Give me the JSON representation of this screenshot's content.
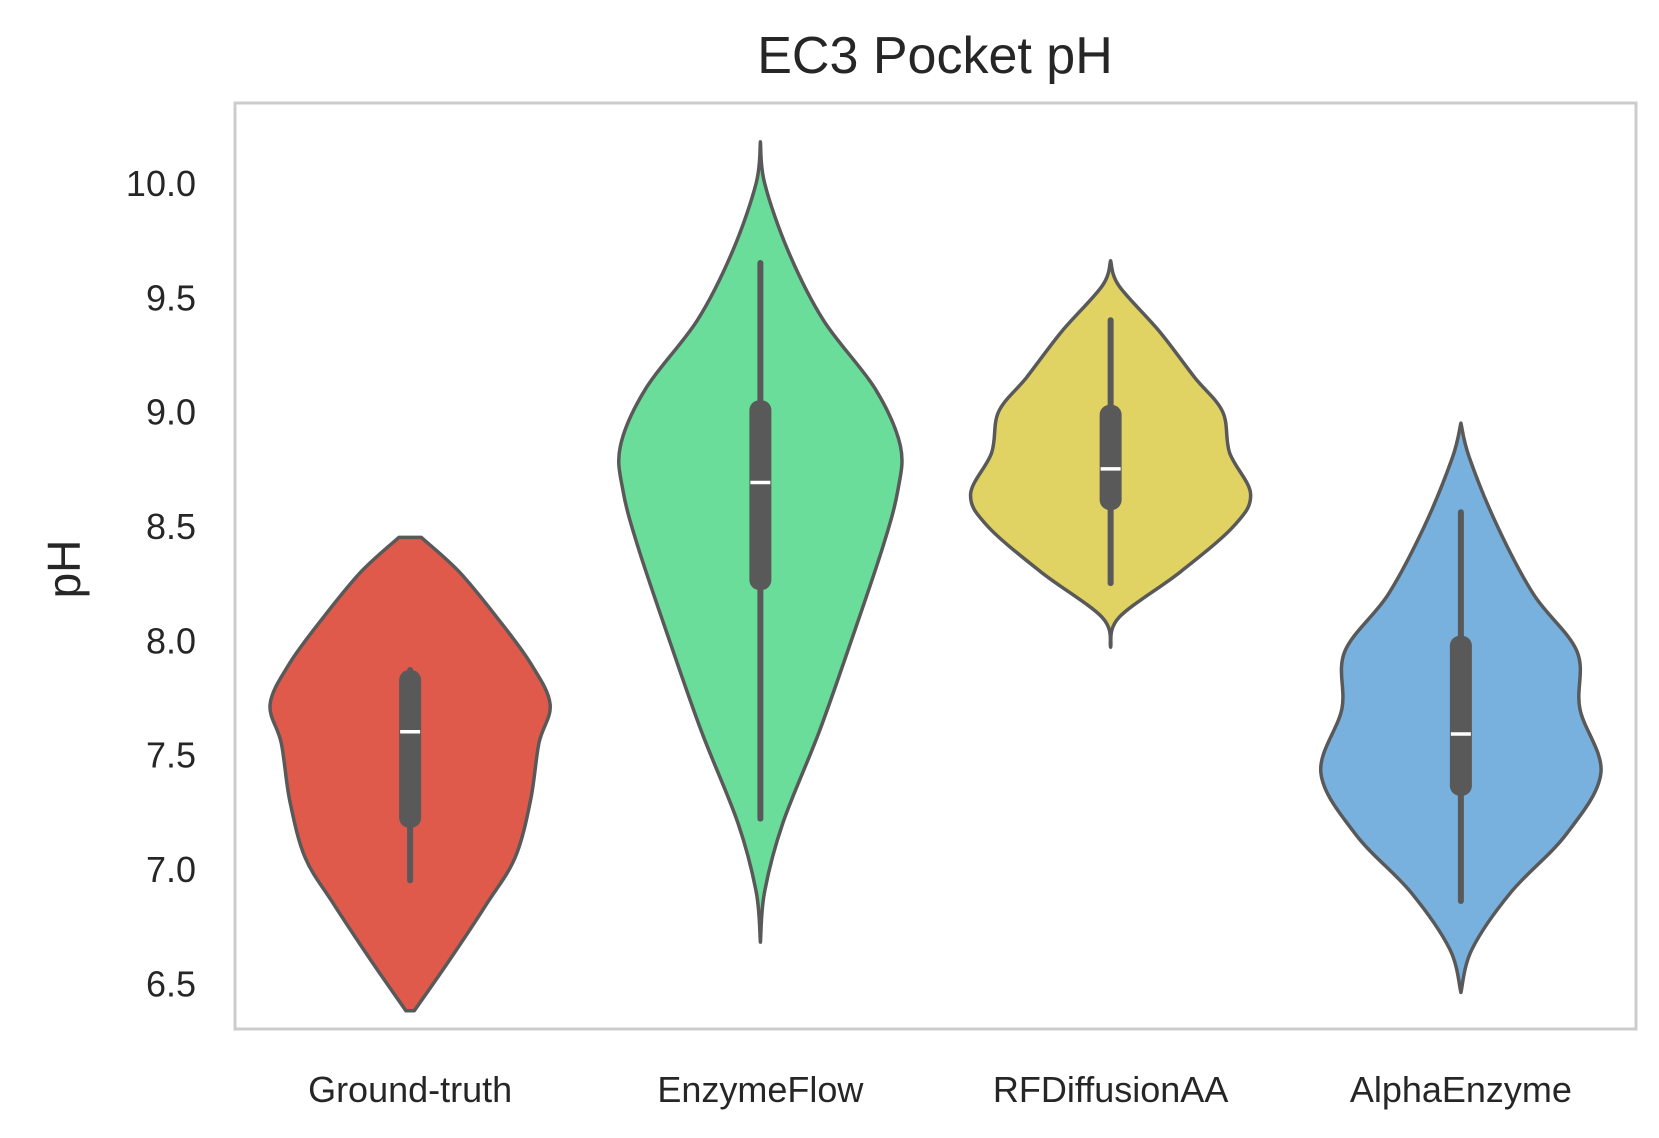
{
  "chart_data": {
    "type": "violin",
    "title": "EC3 Pocket pH",
    "xlabel": "",
    "ylabel": "pH",
    "ylim": [
      6.3,
      10.35
    ],
    "yticks": [
      "6.5",
      "7.0",
      "7.5",
      "8.0",
      "8.5",
      "9.0",
      "9.5",
      "10.0"
    ],
    "grid": false,
    "legend": "none",
    "categories": [
      "Ground-truth",
      "EnzymeFlow",
      "RFDiffusionAA",
      "AlphaEnzyme"
    ],
    "series": [
      {
        "category": "Ground-truth",
        "color": "#e05a4b",
        "min": 6.38,
        "max": 8.45,
        "whisker_low": 6.95,
        "whisker_high": 7.87,
        "q1": 7.18,
        "median": 7.6,
        "q3": 7.87,
        "density": [
          [
            6.38,
            0.03
          ],
          [
            6.6,
            0.28
          ],
          [
            6.85,
            0.55
          ],
          [
            7.05,
            0.75
          ],
          [
            7.3,
            0.86
          ],
          [
            7.55,
            0.92
          ],
          [
            7.72,
            1.0
          ],
          [
            7.9,
            0.86
          ],
          [
            8.1,
            0.62
          ],
          [
            8.3,
            0.35
          ],
          [
            8.45,
            0.08
          ]
        ]
      },
      {
        "category": "EnzymeFlow",
        "color": "#6bdd9a",
        "min": 6.68,
        "max": 10.18,
        "whisker_low": 7.22,
        "whisker_high": 9.65,
        "q1": 8.22,
        "median": 8.69,
        "q3": 9.05,
        "density": [
          [
            6.68,
            0.0
          ],
          [
            6.9,
            0.03
          ],
          [
            7.2,
            0.16
          ],
          [
            7.6,
            0.42
          ],
          [
            8.0,
            0.65
          ],
          [
            8.4,
            0.87
          ],
          [
            8.65,
            0.98
          ],
          [
            8.85,
            1.0
          ],
          [
            9.1,
            0.82
          ],
          [
            9.4,
            0.45
          ],
          [
            9.7,
            0.2
          ],
          [
            10.0,
            0.03
          ],
          [
            10.18,
            0.0
          ]
        ]
      },
      {
        "category": "RFDiffusionAA",
        "color": "#e0d263",
        "min": 7.97,
        "max": 9.66,
        "whisker_low": 8.25,
        "whisker_high": 9.4,
        "q1": 8.57,
        "median": 8.75,
        "q3": 9.03,
        "density": [
          [
            7.97,
            0.0
          ],
          [
            8.1,
            0.06
          ],
          [
            8.3,
            0.5
          ],
          [
            8.5,
            0.88
          ],
          [
            8.64,
            1.0
          ],
          [
            8.82,
            0.85
          ],
          [
            9.0,
            0.8
          ],
          [
            9.15,
            0.6
          ],
          [
            9.35,
            0.35
          ],
          [
            9.55,
            0.06
          ],
          [
            9.66,
            0.0
          ]
        ]
      },
      {
        "category": "AlphaEnzyme",
        "color": "#78b1de",
        "min": 6.46,
        "max": 8.95,
        "whisker_low": 6.86,
        "whisker_high": 8.56,
        "q1": 7.32,
        "median": 7.59,
        "q3": 8.02,
        "density": [
          [
            6.46,
            0.0
          ],
          [
            6.65,
            0.08
          ],
          [
            6.9,
            0.36
          ],
          [
            7.15,
            0.75
          ],
          [
            7.42,
            1.0
          ],
          [
            7.7,
            0.85
          ],
          [
            7.95,
            0.83
          ],
          [
            8.2,
            0.52
          ],
          [
            8.5,
            0.26
          ],
          [
            8.8,
            0.06
          ],
          [
            8.95,
            0.0
          ]
        ]
      }
    ]
  }
}
